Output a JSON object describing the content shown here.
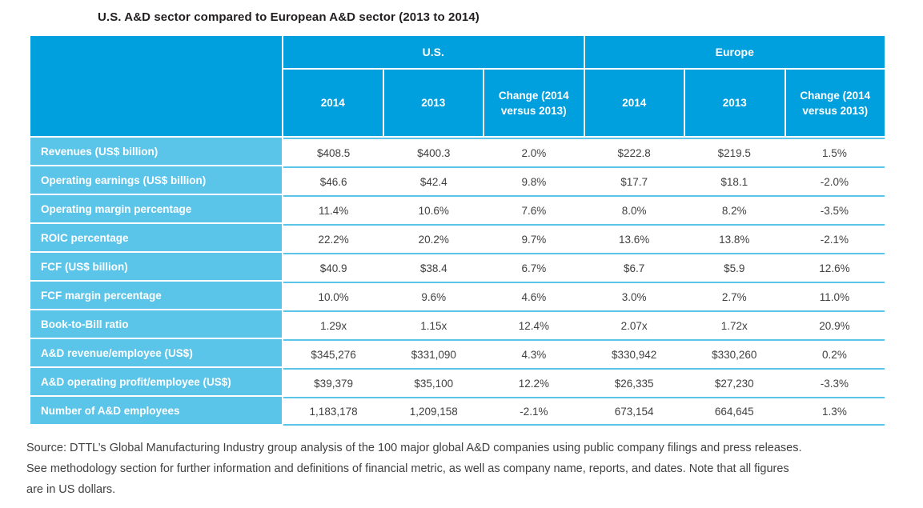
{
  "colors": {
    "header_blue": "#009FDE",
    "row_blue": "#5BC4E9",
    "body_text": "#414042"
  },
  "chart_data": {
    "type": "table",
    "title": "U.S. A&D sector compared to European A&D sector (2013 to 2014)",
    "column_groups": [
      {
        "label": "U.S."
      },
      {
        "label": "Europe"
      }
    ],
    "columns": [
      "2014",
      "2013",
      "Change (2014 versus 2013)",
      "2014",
      "2013",
      "Change (2014 versus 2013)"
    ],
    "rows": [
      {
        "label": "Revenues (US$ billion)",
        "values": [
          "$408.5",
          "$400.3",
          "2.0%",
          "$222.8",
          "$219.5",
          "1.5%"
        ]
      },
      {
        "label": "Operating earnings (US$ billion)",
        "values": [
          "$46.6",
          "$42.4",
          "9.8%",
          "$17.7",
          "$18.1",
          "-2.0%"
        ]
      },
      {
        "label": "Operating margin percentage",
        "values": [
          "11.4%",
          "10.6%",
          "7.6%",
          "8.0%",
          "8.2%",
          "-3.5%"
        ]
      },
      {
        "label": "ROIC percentage",
        "values": [
          "22.2%",
          "20.2%",
          "9.7%",
          "13.6%",
          "13.8%",
          "-2.1%"
        ]
      },
      {
        "label": "FCF (US$ billion)",
        "values": [
          "$40.9",
          "$38.4",
          "6.7%",
          "$6.7",
          "$5.9",
          "12.6%"
        ]
      },
      {
        "label": "FCF margin percentage",
        "values": [
          "10.0%",
          "9.6%",
          "4.6%",
          "3.0%",
          "2.7%",
          "11.0%"
        ]
      },
      {
        "label": "Book-to-Bill ratio",
        "values": [
          "1.29x",
          "1.15x",
          "12.4%",
          "2.07x",
          "1.72x",
          "20.9%"
        ]
      },
      {
        "label": "A&D revenue/employee (US$)",
        "values": [
          "$345,276",
          "$331,090",
          "4.3%",
          "$330,942",
          "$330,260",
          "0.2%"
        ]
      },
      {
        "label": "A&D operating profit/employee (US$)",
        "values": [
          "$39,379",
          "$35,100",
          "12.2%",
          "$26,335",
          "$27,230",
          "-3.3%"
        ]
      },
      {
        "label": "Number of A&D employees",
        "values": [
          "1,183,178",
          "1,209,158",
          "-2.1%",
          "673,154",
          "664,645",
          "1.3%"
        ]
      }
    ],
    "source_note_lines": [
      "Source: DTTL’s Global Manufacturing Industry group analysis of the 100 major global A&D companies using public company filings and press releases.",
      "See methodology section for further information and definitions of financial metric, as well as company name, reports, and dates. Note that all figures",
      "are in US dollars."
    ]
  }
}
